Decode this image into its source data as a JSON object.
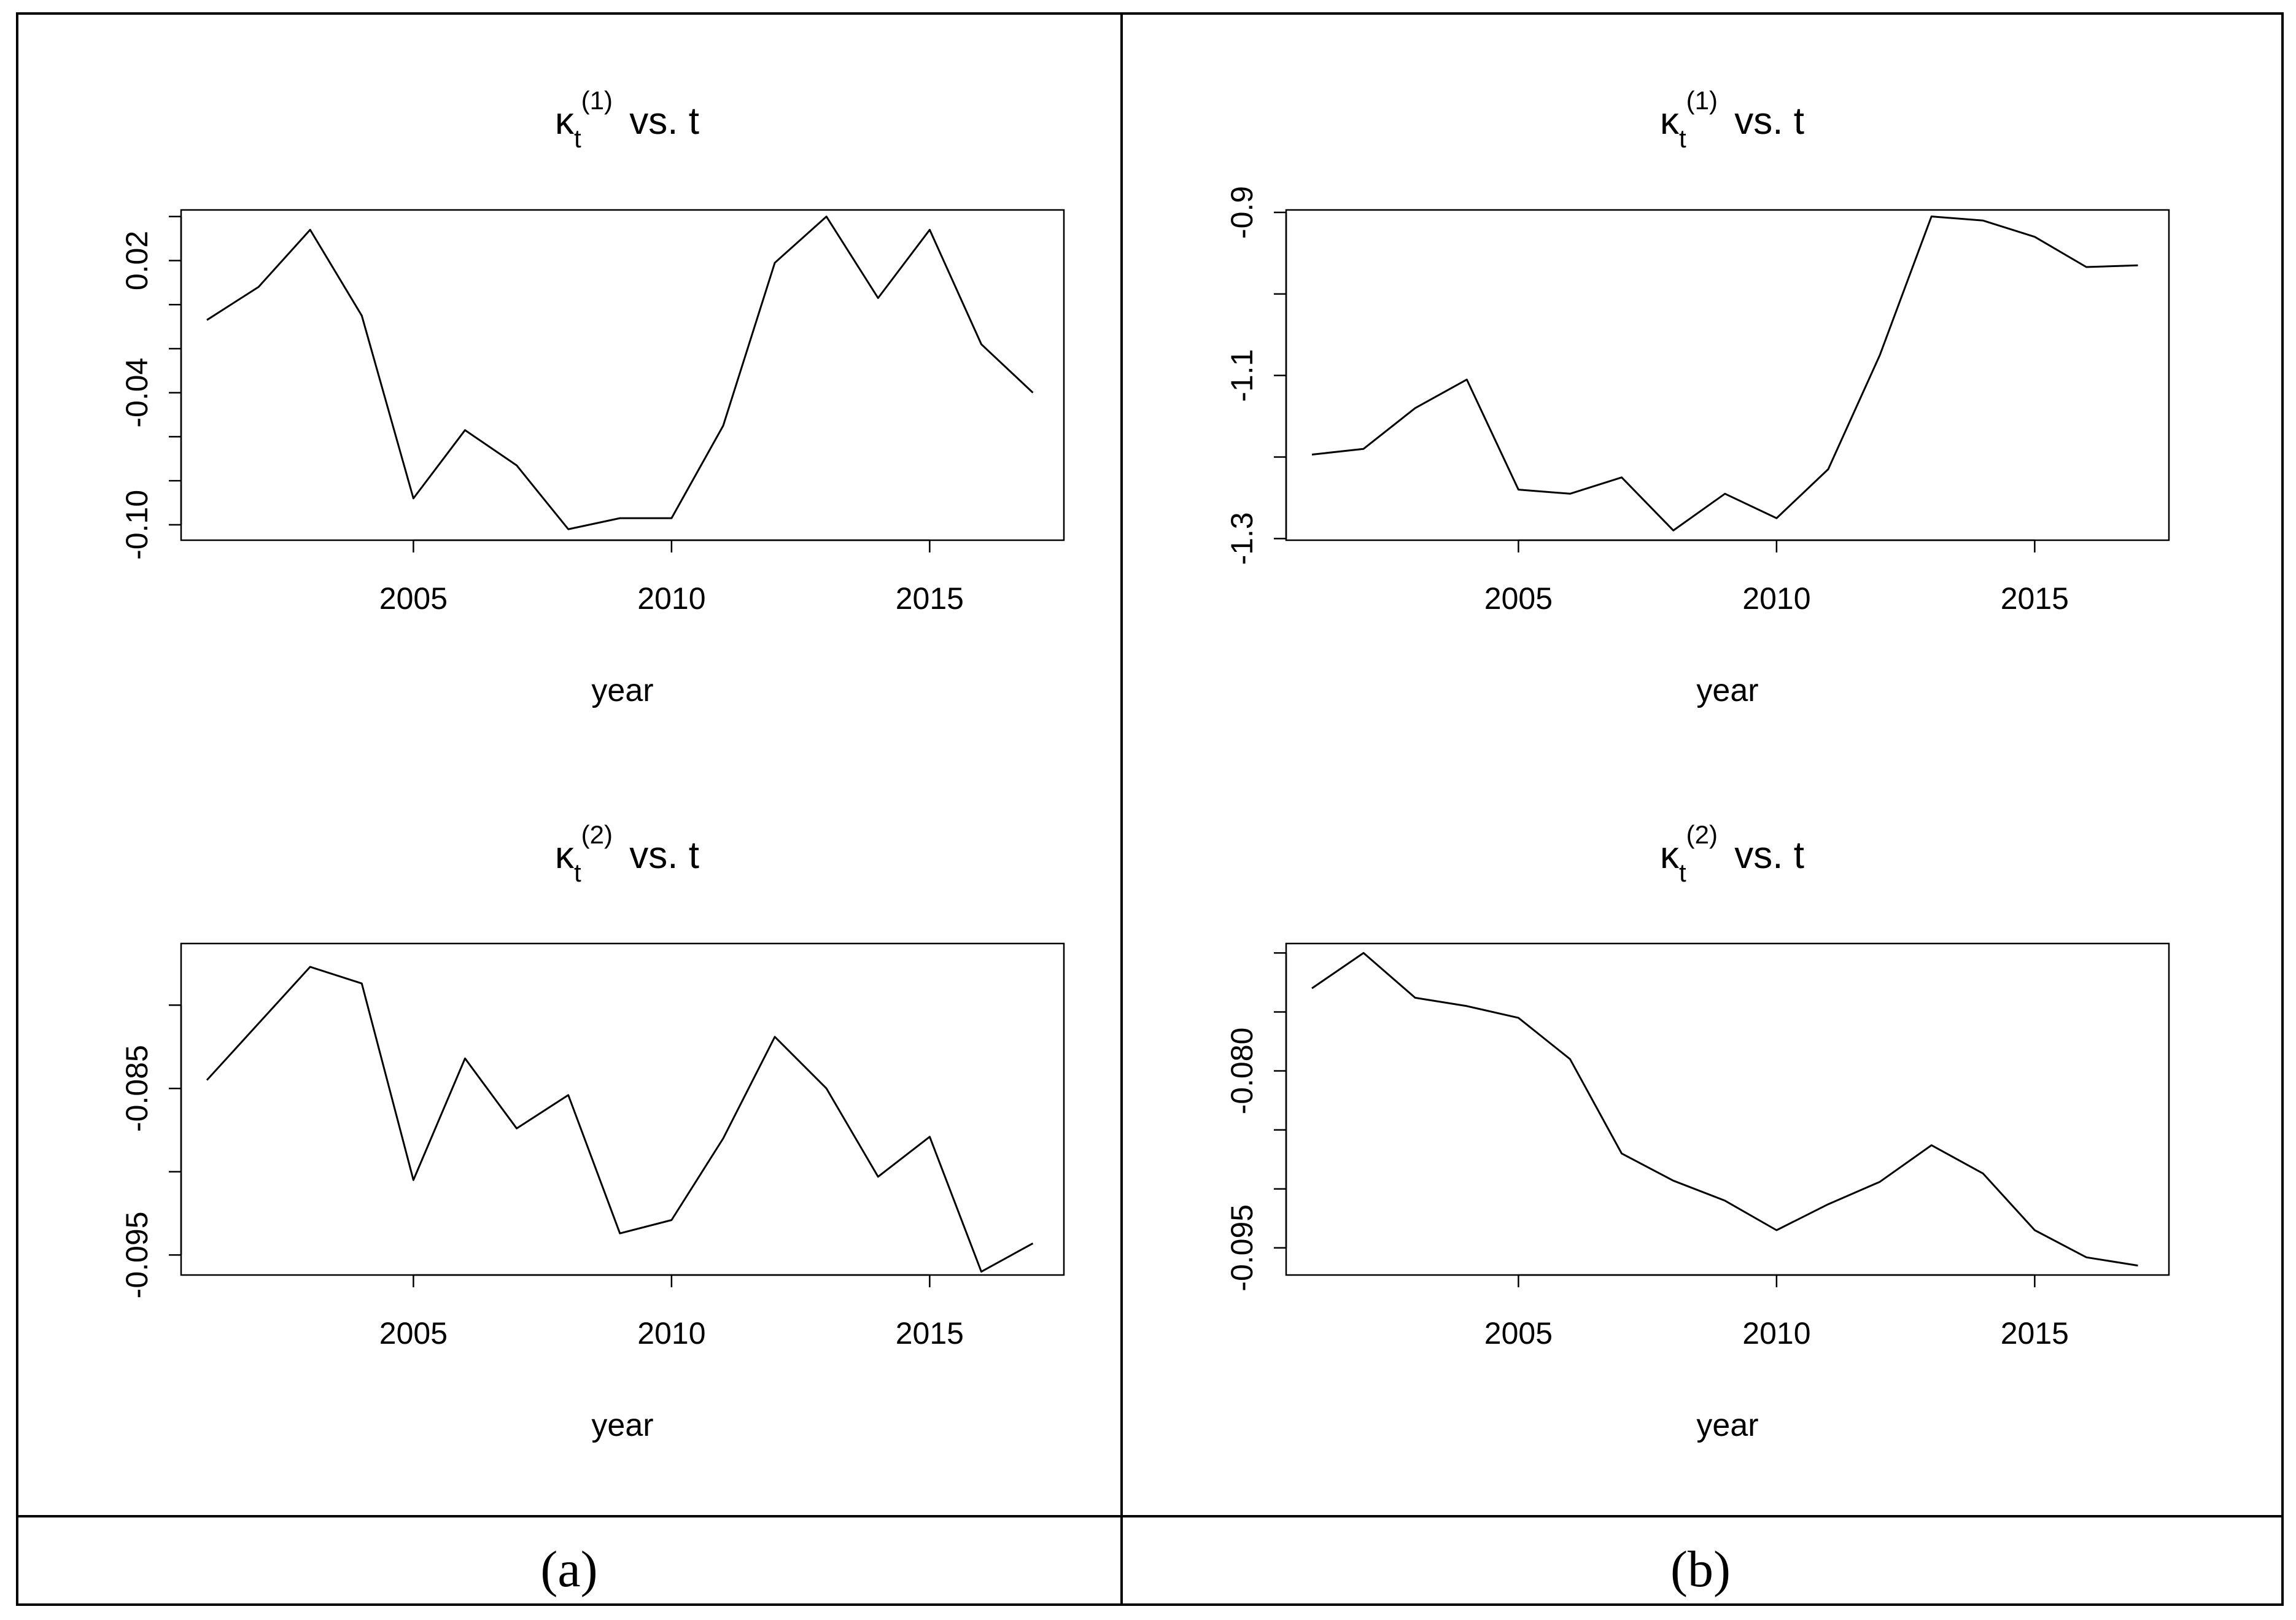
{
  "captions": {
    "left": "(a)",
    "right": "(b)"
  },
  "chart_data": [
    {
      "id": "a1",
      "type": "line",
      "panel": "a",
      "title": {
        "symbol": "κ",
        "sub": "t",
        "sup": "(1)",
        "rest": "vs. t"
      },
      "xlabel": "year",
      "ylabel": "",
      "xlim": [
        2000.5,
        2017.6
      ],
      "ylim": [
        -0.107,
        0.043
      ],
      "xticks": [
        2005,
        2010,
        2015
      ],
      "yticks": [
        -0.1,
        -0.08,
        -0.06,
        -0.04,
        -0.02,
        0.0,
        0.02,
        0.04
      ],
      "ytick_labels": [
        "-0.10",
        "",
        "",
        "-0.04",
        "",
        "",
        "0.02",
        ""
      ],
      "x": [
        2001,
        2002,
        2003,
        2004,
        2005,
        2006,
        2007,
        2008,
        2009,
        2010,
        2011,
        2012,
        2013,
        2014,
        2015,
        2016,
        2017
      ],
      "y": [
        -0.007,
        0.008,
        0.034,
        -0.005,
        -0.088,
        -0.057,
        -0.073,
        -0.102,
        -0.097,
        -0.097,
        -0.055,
        0.019,
        0.04,
        0.003,
        0.034,
        -0.018,
        -0.04
      ]
    },
    {
      "id": "a2",
      "type": "line",
      "panel": "a",
      "title": {
        "symbol": "κ",
        "sub": "t",
        "sup": "(2)",
        "rest": "vs. t"
      },
      "xlabel": "year",
      "ylabel": "",
      "xlim": [
        2000.5,
        2017.6
      ],
      "ylim": [
        -0.0962,
        -0.0763
      ],
      "xticks": [
        2005,
        2010,
        2015
      ],
      "yticks": [
        -0.095,
        -0.09,
        -0.085,
        -0.08
      ],
      "ytick_labels": [
        "-0.095",
        "",
        "-0.085",
        ""
      ],
      "x": [
        2001,
        2002,
        2003,
        2004,
        2005,
        2006,
        2007,
        2008,
        2009,
        2010,
        2011,
        2012,
        2013,
        2014,
        2015,
        2016,
        2017
      ],
      "y": [
        -0.0845,
        -0.0811,
        -0.0777,
        -0.0787,
        -0.0905,
        -0.0832,
        -0.0874,
        -0.0854,
        -0.0937,
        -0.0929,
        -0.088,
        -0.0819,
        -0.085,
        -0.0903,
        -0.0879,
        -0.096,
        -0.0943
      ]
    },
    {
      "id": "b1",
      "type": "line",
      "panel": "b",
      "title": {
        "symbol": "κ",
        "sub": "t",
        "sup": "(1)",
        "rest": "vs. t"
      },
      "xlabel": "year",
      "ylabel": "",
      "xlim": [
        2000.5,
        2017.6
      ],
      "ylim": [
        -1.302,
        -0.897
      ],
      "xticks": [
        2005,
        2010,
        2015
      ],
      "yticks": [
        -1.3,
        -1.2,
        -1.1,
        -1.0,
        -0.9
      ],
      "ytick_labels": [
        "-1.3",
        "",
        "-1.1",
        "",
        "-0.9"
      ],
      "x": [
        2001,
        2002,
        2003,
        2004,
        2005,
        2006,
        2007,
        2008,
        2009,
        2010,
        2011,
        2012,
        2013,
        2014,
        2015,
        2016,
        2017
      ],
      "y": [
        -1.197,
        -1.19,
        -1.14,
        -1.105,
        -1.24,
        -1.245,
        -1.225,
        -1.29,
        -1.245,
        -1.275,
        -1.215,
        -1.075,
        -0.905,
        -0.91,
        -0.93,
        -0.967,
        -0.965
      ]
    },
    {
      "id": "b2",
      "type": "line",
      "panel": "b",
      "title": {
        "symbol": "κ",
        "sub": "t",
        "sup": "(2)",
        "rest": "vs. t"
      },
      "xlabel": "year",
      "ylabel": "",
      "xlim": [
        2000.5,
        2017.6
      ],
      "ylim": [
        -0.0973,
        -0.0692
      ],
      "xticks": [
        2005,
        2010,
        2015
      ],
      "yticks": [
        -0.095,
        -0.09,
        -0.085,
        -0.08,
        -0.075,
        -0.07
      ],
      "ytick_labels": [
        "-0.095",
        "",
        "",
        "-0.080",
        "",
        ""
      ],
      "x": [
        2001,
        2002,
        2003,
        2004,
        2005,
        2006,
        2007,
        2008,
        2009,
        2010,
        2011,
        2012,
        2013,
        2014,
        2015,
        2016,
        2017
      ],
      "y": [
        -0.073,
        -0.07,
        -0.0738,
        -0.0745,
        -0.0755,
        -0.079,
        -0.087,
        -0.0893,
        -0.091,
        -0.0935,
        -0.0913,
        -0.0894,
        -0.0863,
        -0.0887,
        -0.0935,
        -0.0958,
        -0.0965
      ]
    }
  ]
}
